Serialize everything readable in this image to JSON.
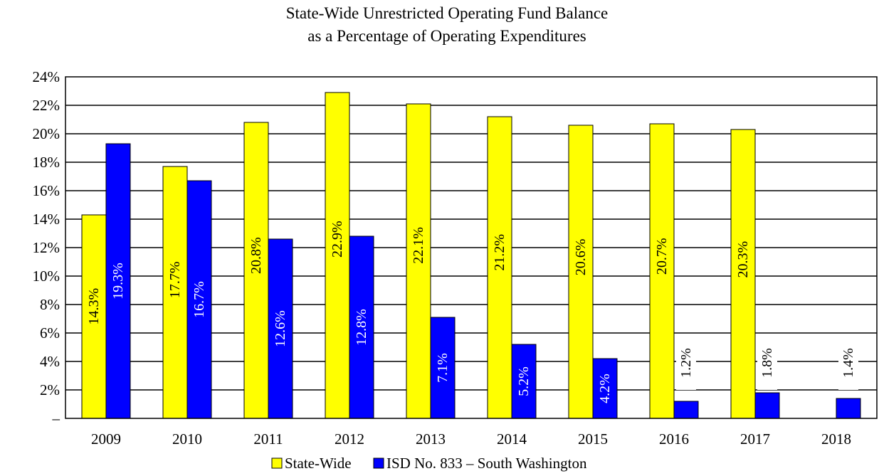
{
  "chart_data": {
    "type": "bar",
    "title": [
      "State-Wide Unrestricted Operating Fund Balance",
      "as a Percentage of Operating Expenditures"
    ],
    "categories": [
      "2009",
      "2010",
      "2011",
      "2012",
      "2013",
      "2014",
      "2015",
      "2016",
      "2017",
      "2018"
    ],
    "series": [
      {
        "name": "State-Wide",
        "color": "#ffff00",
        "values": [
          14.3,
          17.7,
          20.8,
          22.9,
          22.1,
          21.2,
          20.6,
          20.7,
          20.3,
          null
        ],
        "labels": [
          "14.3%",
          "17.7%",
          "20.8%",
          "22.9%",
          "22.1%",
          "21.2%",
          "20.6%",
          "20.7%",
          "20.3%",
          ""
        ]
      },
      {
        "name": "ISD No. 833 – South Washington",
        "color": "#0000ff",
        "values": [
          19.3,
          16.7,
          12.6,
          12.8,
          7.1,
          5.2,
          4.2,
          1.2,
          1.8,
          1.4
        ],
        "labels": [
          "19.3%",
          "16.7%",
          "12.6%",
          "12.8%",
          "7.1%",
          "5.2%",
          "4.2%",
          "1.2%",
          "1.8%",
          "1.4%"
        ]
      }
    ],
    "ylim": [
      0,
      24
    ],
    "yticks": [
      0,
      2,
      4,
      6,
      8,
      10,
      12,
      14,
      16,
      18,
      20,
      22,
      24
    ],
    "ytick_labels": [
      "–",
      "2%",
      "4%",
      "6%",
      "8%",
      "10%",
      "12%",
      "14%",
      "16%",
      "18%",
      "20%",
      "22%",
      "24%"
    ],
    "grid": true,
    "legend_position": "bottom-center"
  }
}
